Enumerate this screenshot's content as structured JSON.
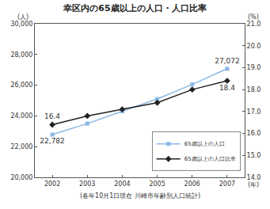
{
  "chart_data": {
    "type": "line",
    "title": "幸区内の65歳以上の人口・人口比率",
    "y_label": "(人)",
    "y2_label": "(%)",
    "x_label": "(年)",
    "note": "(各年10月1日現在 川崎市年齢別人口統計)",
    "categories": [
      "2002",
      "2003",
      "2004",
      "2005",
      "2006",
      "2007"
    ],
    "series": [
      {
        "name": "65歳以上の人口",
        "color": "#8ab8e6",
        "marker": "square",
        "line_style": "solid",
        "values": [
          22782,
          23500,
          24300,
          25100,
          26050,
          27072
        ],
        "value_labels": [
          "22,782",
          null,
          null,
          null,
          null,
          "27,072"
        ]
      },
      {
        "name": "65歳以上の人口比率",
        "color": "#222222",
        "marker": "diamond",
        "line_style": "solid",
        "axis": "y2",
        "values": [
          16.4,
          16.8,
          17.1,
          17.4,
          18.0,
          18.4
        ],
        "value_labels": [
          "16.4",
          null,
          null,
          null,
          null,
          "18.4"
        ]
      }
    ],
    "ylim": [
      20000,
      30000
    ],
    "yticks": [
      {
        "value": 20000,
        "label": "20,000"
      },
      {
        "value": 22000,
        "label": "22,000"
      },
      {
        "value": 24000,
        "label": "24,000"
      },
      {
        "value": 26000,
        "label": "26,000"
      },
      {
        "value": 28000,
        "label": "28,000"
      },
      {
        "value": 30000,
        "label": "30,000"
      }
    ],
    "y2lim": [
      14,
      21
    ],
    "y2ticks": [
      {
        "value": 14,
        "label": "14.0"
      },
      {
        "value": 15,
        "label": "15.0"
      },
      {
        "value": 16,
        "label": "16.0"
      },
      {
        "value": 17,
        "label": "17.0"
      },
      {
        "value": 18,
        "label": "18.0"
      },
      {
        "value": 19,
        "label": "19.0"
      },
      {
        "value": 20,
        "label": "20.0"
      },
      {
        "value": 21,
        "label": "21.0"
      }
    ],
    "grid": false,
    "legend": "lower right",
    "data_labels": true
  }
}
